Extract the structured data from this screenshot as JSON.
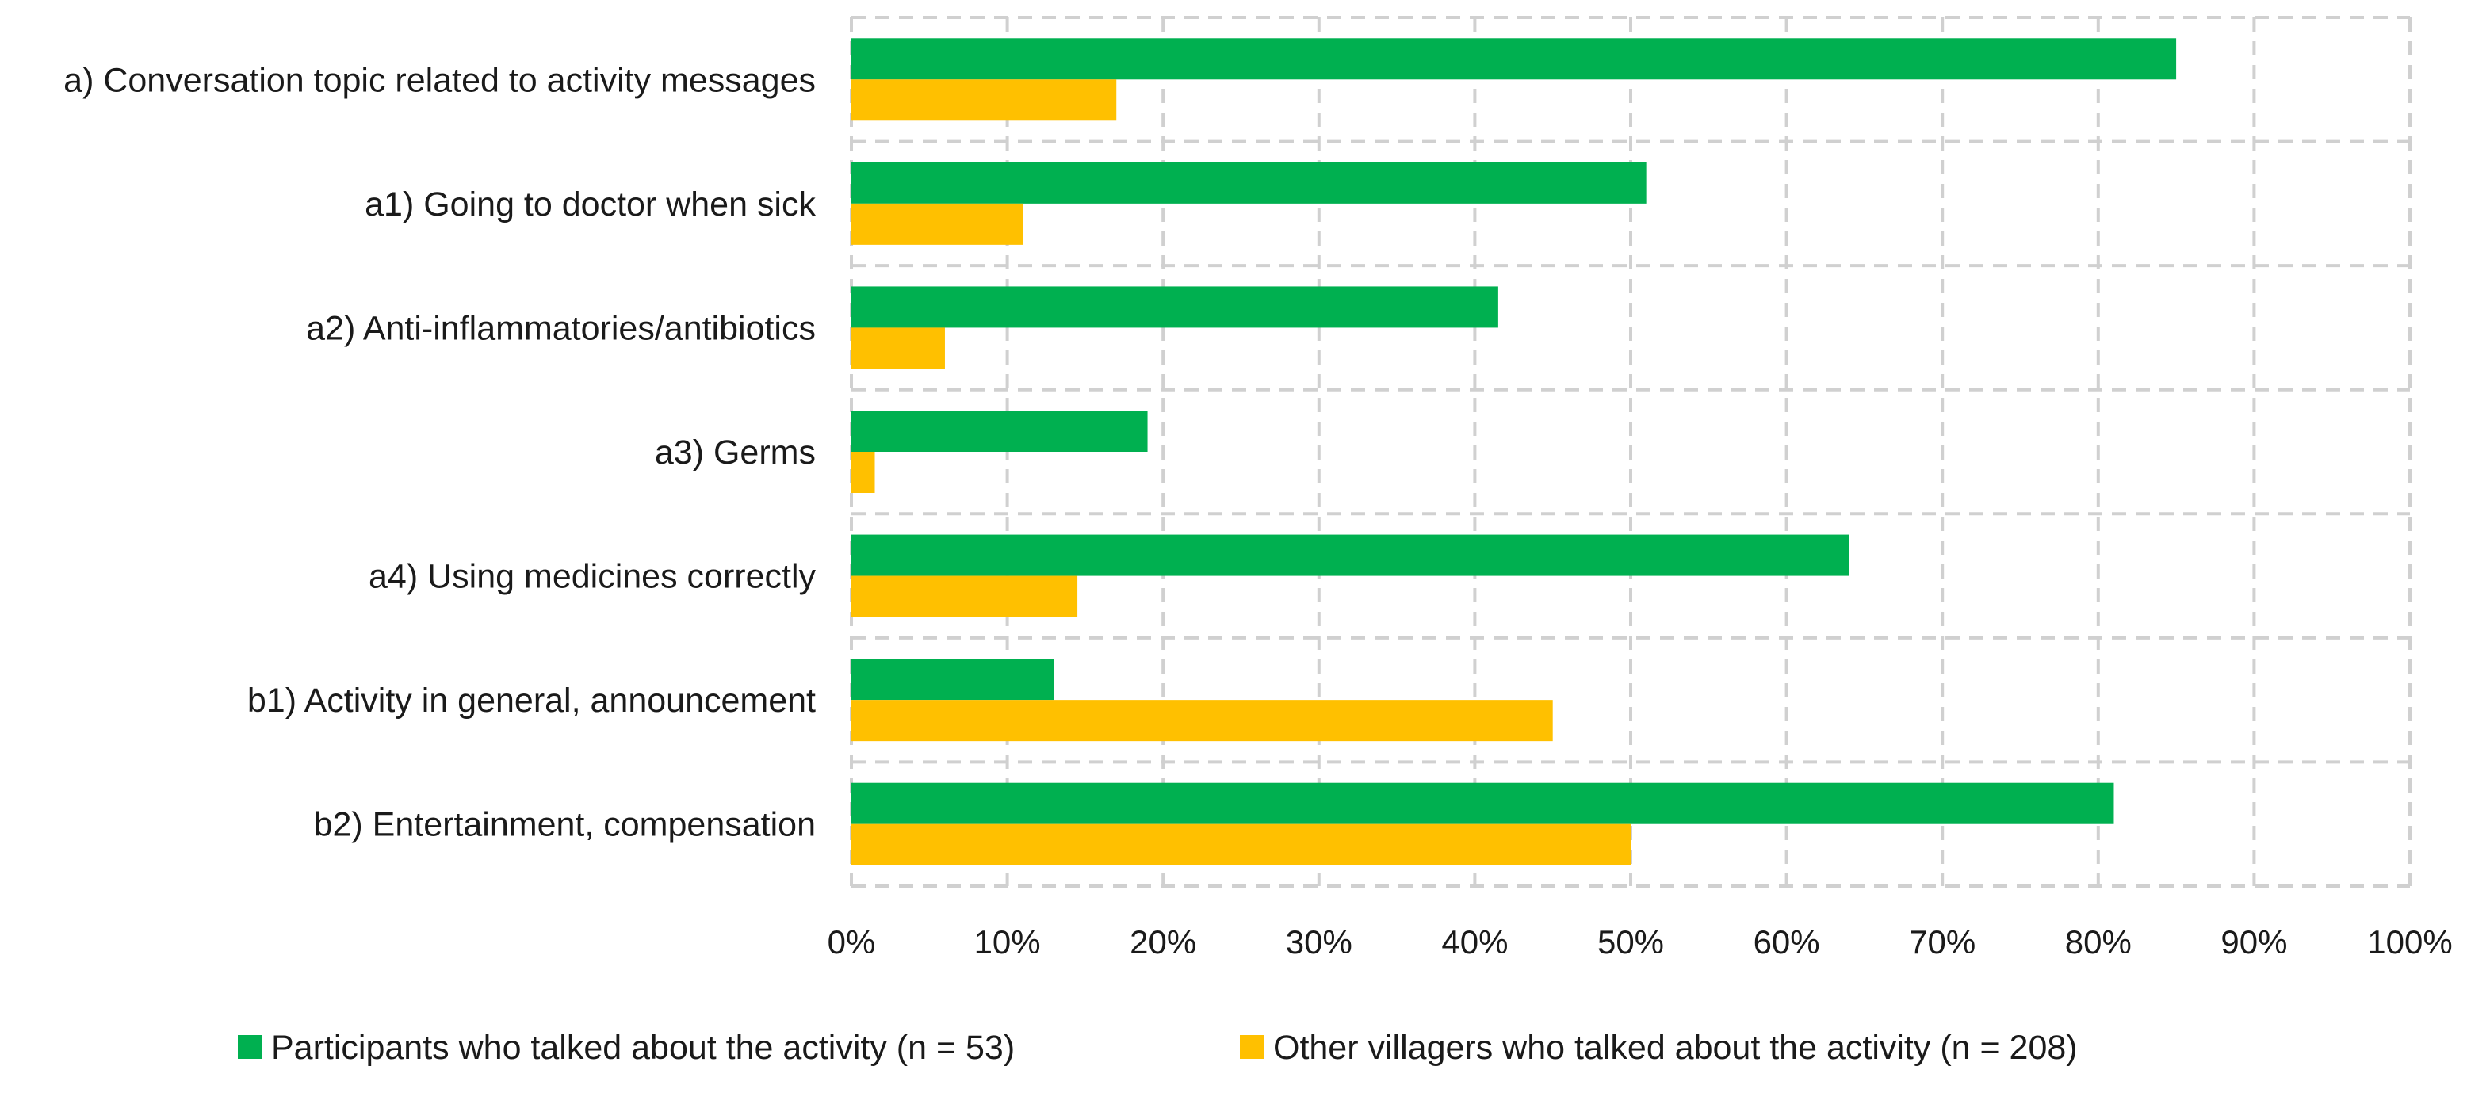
{
  "chart_data": {
    "type": "bar",
    "orientation": "horizontal",
    "categories": [
      "a) Conversation topic related to activity messages",
      "a1) Going to doctor when sick",
      "a2) Anti-inflammatories/antibiotics",
      "a3) Germs",
      "a4) Using medicines correctly",
      "b1) Activity in general, announcement",
      "b2) Entertainment, compensation"
    ],
    "series": [
      {
        "name": "Participants who talked about the activity (n = 53)",
        "color": "#00b050",
        "values": [
          85,
          51,
          41.5,
          19,
          64,
          13,
          81
        ]
      },
      {
        "name": "Other villagers who talked about the activity (n = 208)",
        "color": "#ffc000",
        "values": [
          17,
          11,
          6,
          1.5,
          14.5,
          45,
          50
        ]
      }
    ],
    "xlim": [
      0,
      100
    ],
    "x_ticks": [
      "0%",
      "10%",
      "20%",
      "30%",
      "40%",
      "50%",
      "60%",
      "70%",
      "80%",
      "90%",
      "100%"
    ],
    "grid": true,
    "legend_position": "bottom",
    "title": "",
    "xlabel": "",
    "ylabel": ""
  }
}
